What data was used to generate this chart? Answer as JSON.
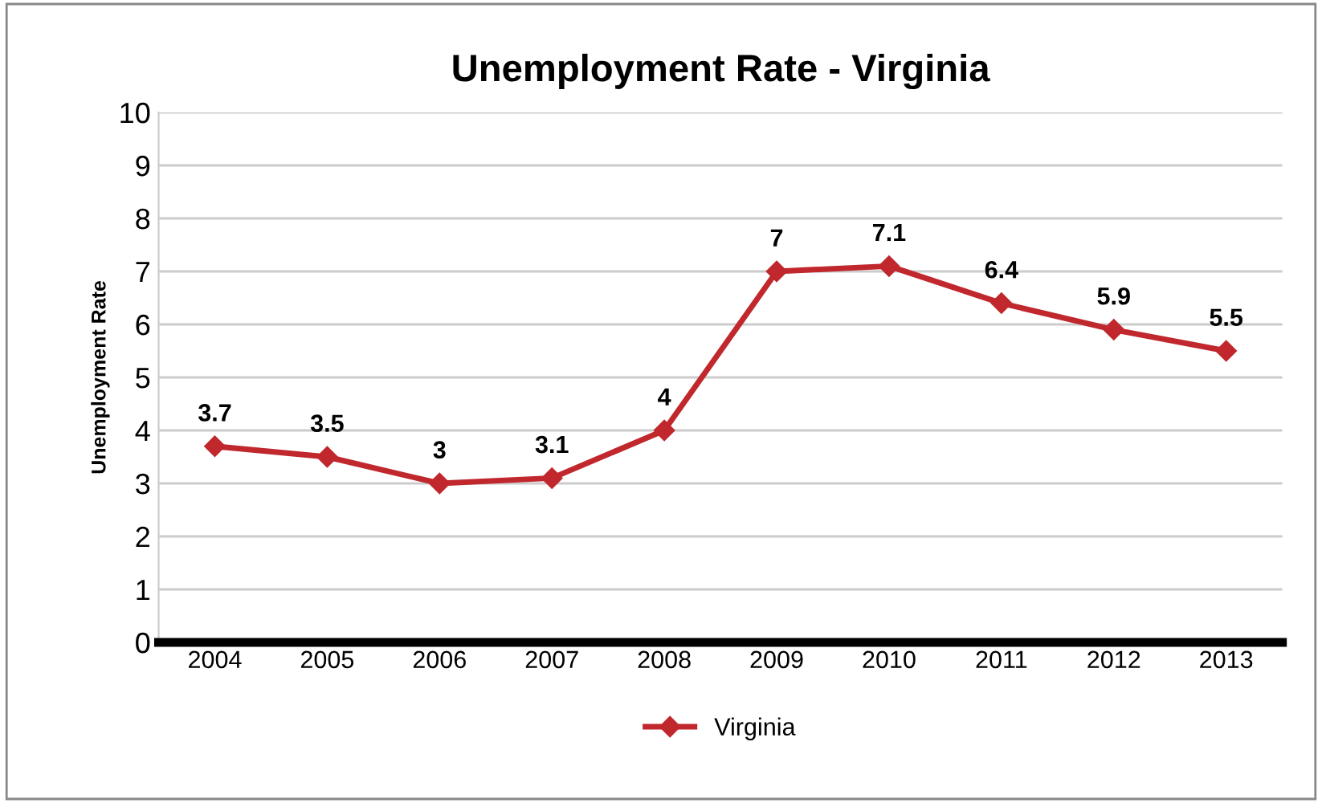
{
  "chart_data": {
    "type": "line",
    "title": "Unemployment Rate - Virginia",
    "ylabel": "Unemployment Rate",
    "categories": [
      "2004",
      "2005",
      "2006",
      "2007",
      "2008",
      "2009",
      "2010",
      "2011",
      "2012",
      "2013"
    ],
    "series": [
      {
        "name": "Virginia",
        "color": "#c0282d",
        "values": [
          3.7,
          3.5,
          3,
          3.1,
          4,
          7,
          7.1,
          6.4,
          5.9,
          5.5
        ]
      }
    ],
    "ylim": [
      0,
      10
    ],
    "yticks": [
      0,
      1,
      2,
      3,
      4,
      5,
      6,
      7,
      8,
      9,
      10
    ],
    "grid": "y",
    "legend": "bottom",
    "marker": "diamond",
    "line_style": "solid",
    "data_labels": true
  }
}
